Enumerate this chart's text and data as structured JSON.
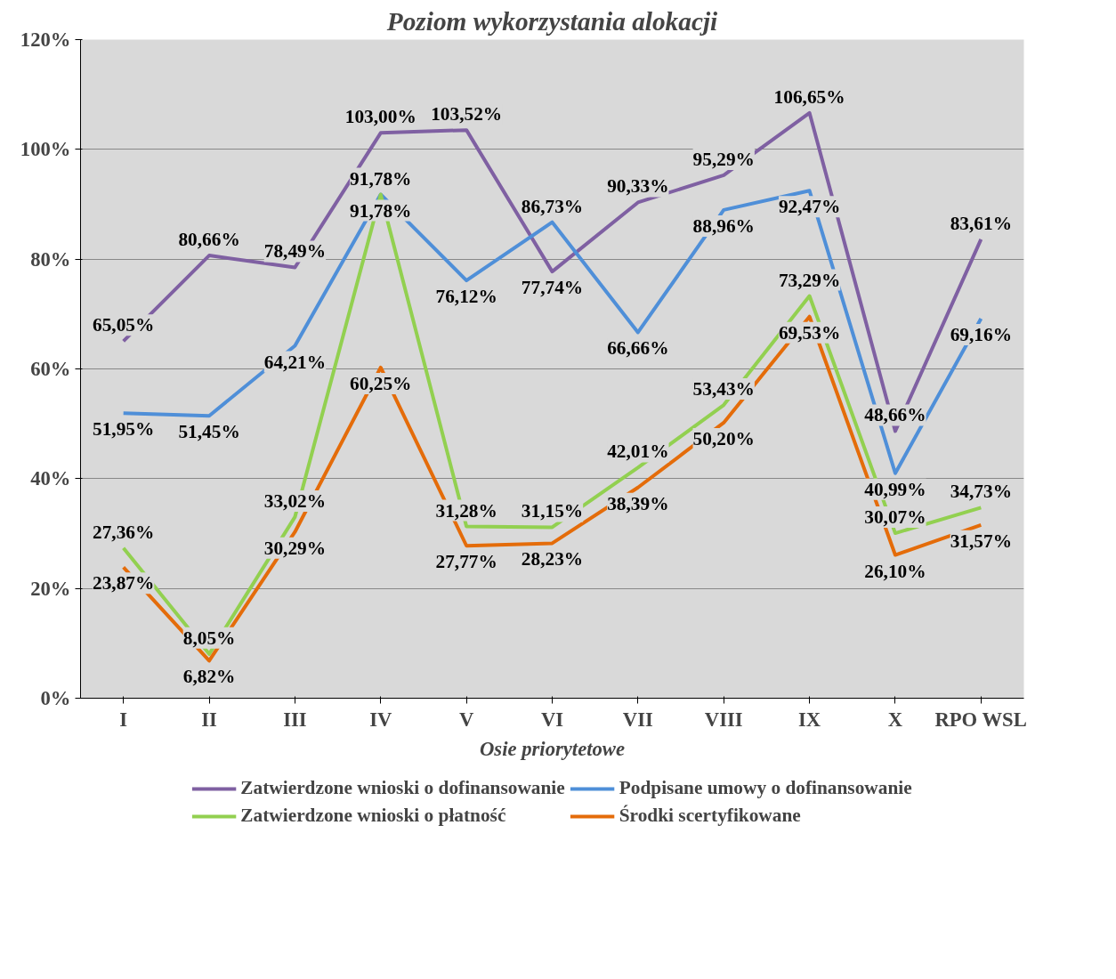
{
  "chart_data": {
    "type": "line",
    "title": "Poziom wykorzystania alokacji",
    "xlabel": "Osie priorytetowe",
    "categories": [
      "I",
      "II",
      "III",
      "IV",
      "V",
      "VI",
      "VII",
      "VIII",
      "IX",
      "X",
      "RPO WSL"
    ],
    "ylim": [
      0,
      120
    ],
    "yticks": [
      {
        "value": 0,
        "label": "0%"
      },
      {
        "value": 20,
        "label": "20%"
      },
      {
        "value": 40,
        "label": "40%"
      },
      {
        "value": 60,
        "label": "60%"
      },
      {
        "value": 80,
        "label": "80%"
      },
      {
        "value": 100,
        "label": "100%"
      },
      {
        "value": 120,
        "label": "120%"
      }
    ],
    "grid": "y",
    "legend": "bottom",
    "marker": "none",
    "line_style": "solid",
    "series": [
      {
        "name": "Zatwierdzone wnioski o dofinansowanie",
        "color": "#7f60a2",
        "values": [
          65.05,
          80.66,
          78.49,
          103.0,
          103.52,
          77.74,
          90.33,
          95.29,
          106.65,
          48.66,
          83.61
        ],
        "value_labels": [
          "65,05%",
          "80,66%",
          "78,49%",
          "103,00%",
          "103,52%",
          "77,74%",
          "90,33%",
          "95,29%",
          "106,65%",
          "48,66%",
          "83,61%"
        ]
      },
      {
        "name": "Podpisane umowy o dofinansowanie",
        "color": "#4f8fd8",
        "values": [
          51.95,
          51.45,
          64.21,
          91.78,
          76.12,
          86.73,
          66.66,
          88.96,
          92.47,
          40.99,
          69.16
        ],
        "value_labels": [
          "51,95%",
          "51,45%",
          "64,21%",
          "91,78%",
          "76,12%",
          "86,73%",
          "66,66%",
          "88,96%",
          "92,47%",
          "40,99%",
          "69,16%"
        ]
      },
      {
        "name": "Zatwierdzone wnioski o płatność",
        "color": "#92d050",
        "values": [
          27.36,
          8.05,
          33.02,
          91.78,
          31.28,
          31.15,
          42.01,
          53.43,
          73.29,
          30.07,
          34.73
        ],
        "value_labels": [
          "27,36%",
          "8,05%",
          "33,02%",
          "91,78%",
          "31,28%",
          "31,15%",
          "42,01%",
          "53,43%",
          "73,29%",
          "30,07%",
          "34,73%"
        ]
      },
      {
        "name": "Środki scertyfikowane",
        "color": "#e46c0a",
        "values": [
          23.87,
          6.82,
          30.29,
          60.25,
          27.77,
          28.23,
          38.39,
          50.2,
          69.53,
          26.1,
          31.57
        ],
        "value_labels": [
          "23,87%",
          "6,82%",
          "30,29%",
          "60,25%",
          "27,77%",
          "28,23%",
          "38,39%",
          "50,20%",
          "69,53%",
          "26,10%",
          "31,57%"
        ]
      }
    ]
  }
}
